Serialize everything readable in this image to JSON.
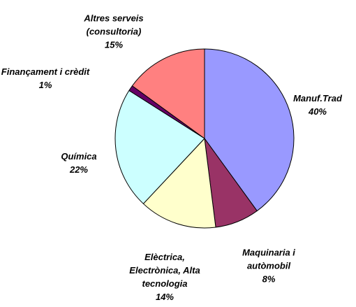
{
  "chart_data": {
    "type": "pie",
    "categories": [
      "Manuf.Trad",
      "Maquinaria i\nautòmobil",
      "Elèctrica,\nElectrònica, Alta\ntecnologia",
      "Química",
      "Finançament i crèdit",
      "Altres serveis\n(consultoria)"
    ],
    "values": [
      40,
      8,
      14,
      22,
      1,
      15
    ],
    "value_labels": [
      "40%",
      "8%",
      "14%",
      "22%",
      "1%",
      "15%"
    ],
    "colors": [
      "#9999ff",
      "#993366",
      "#ffffcc",
      "#ccffff",
      "#660066",
      "#ff8080"
    ]
  }
}
